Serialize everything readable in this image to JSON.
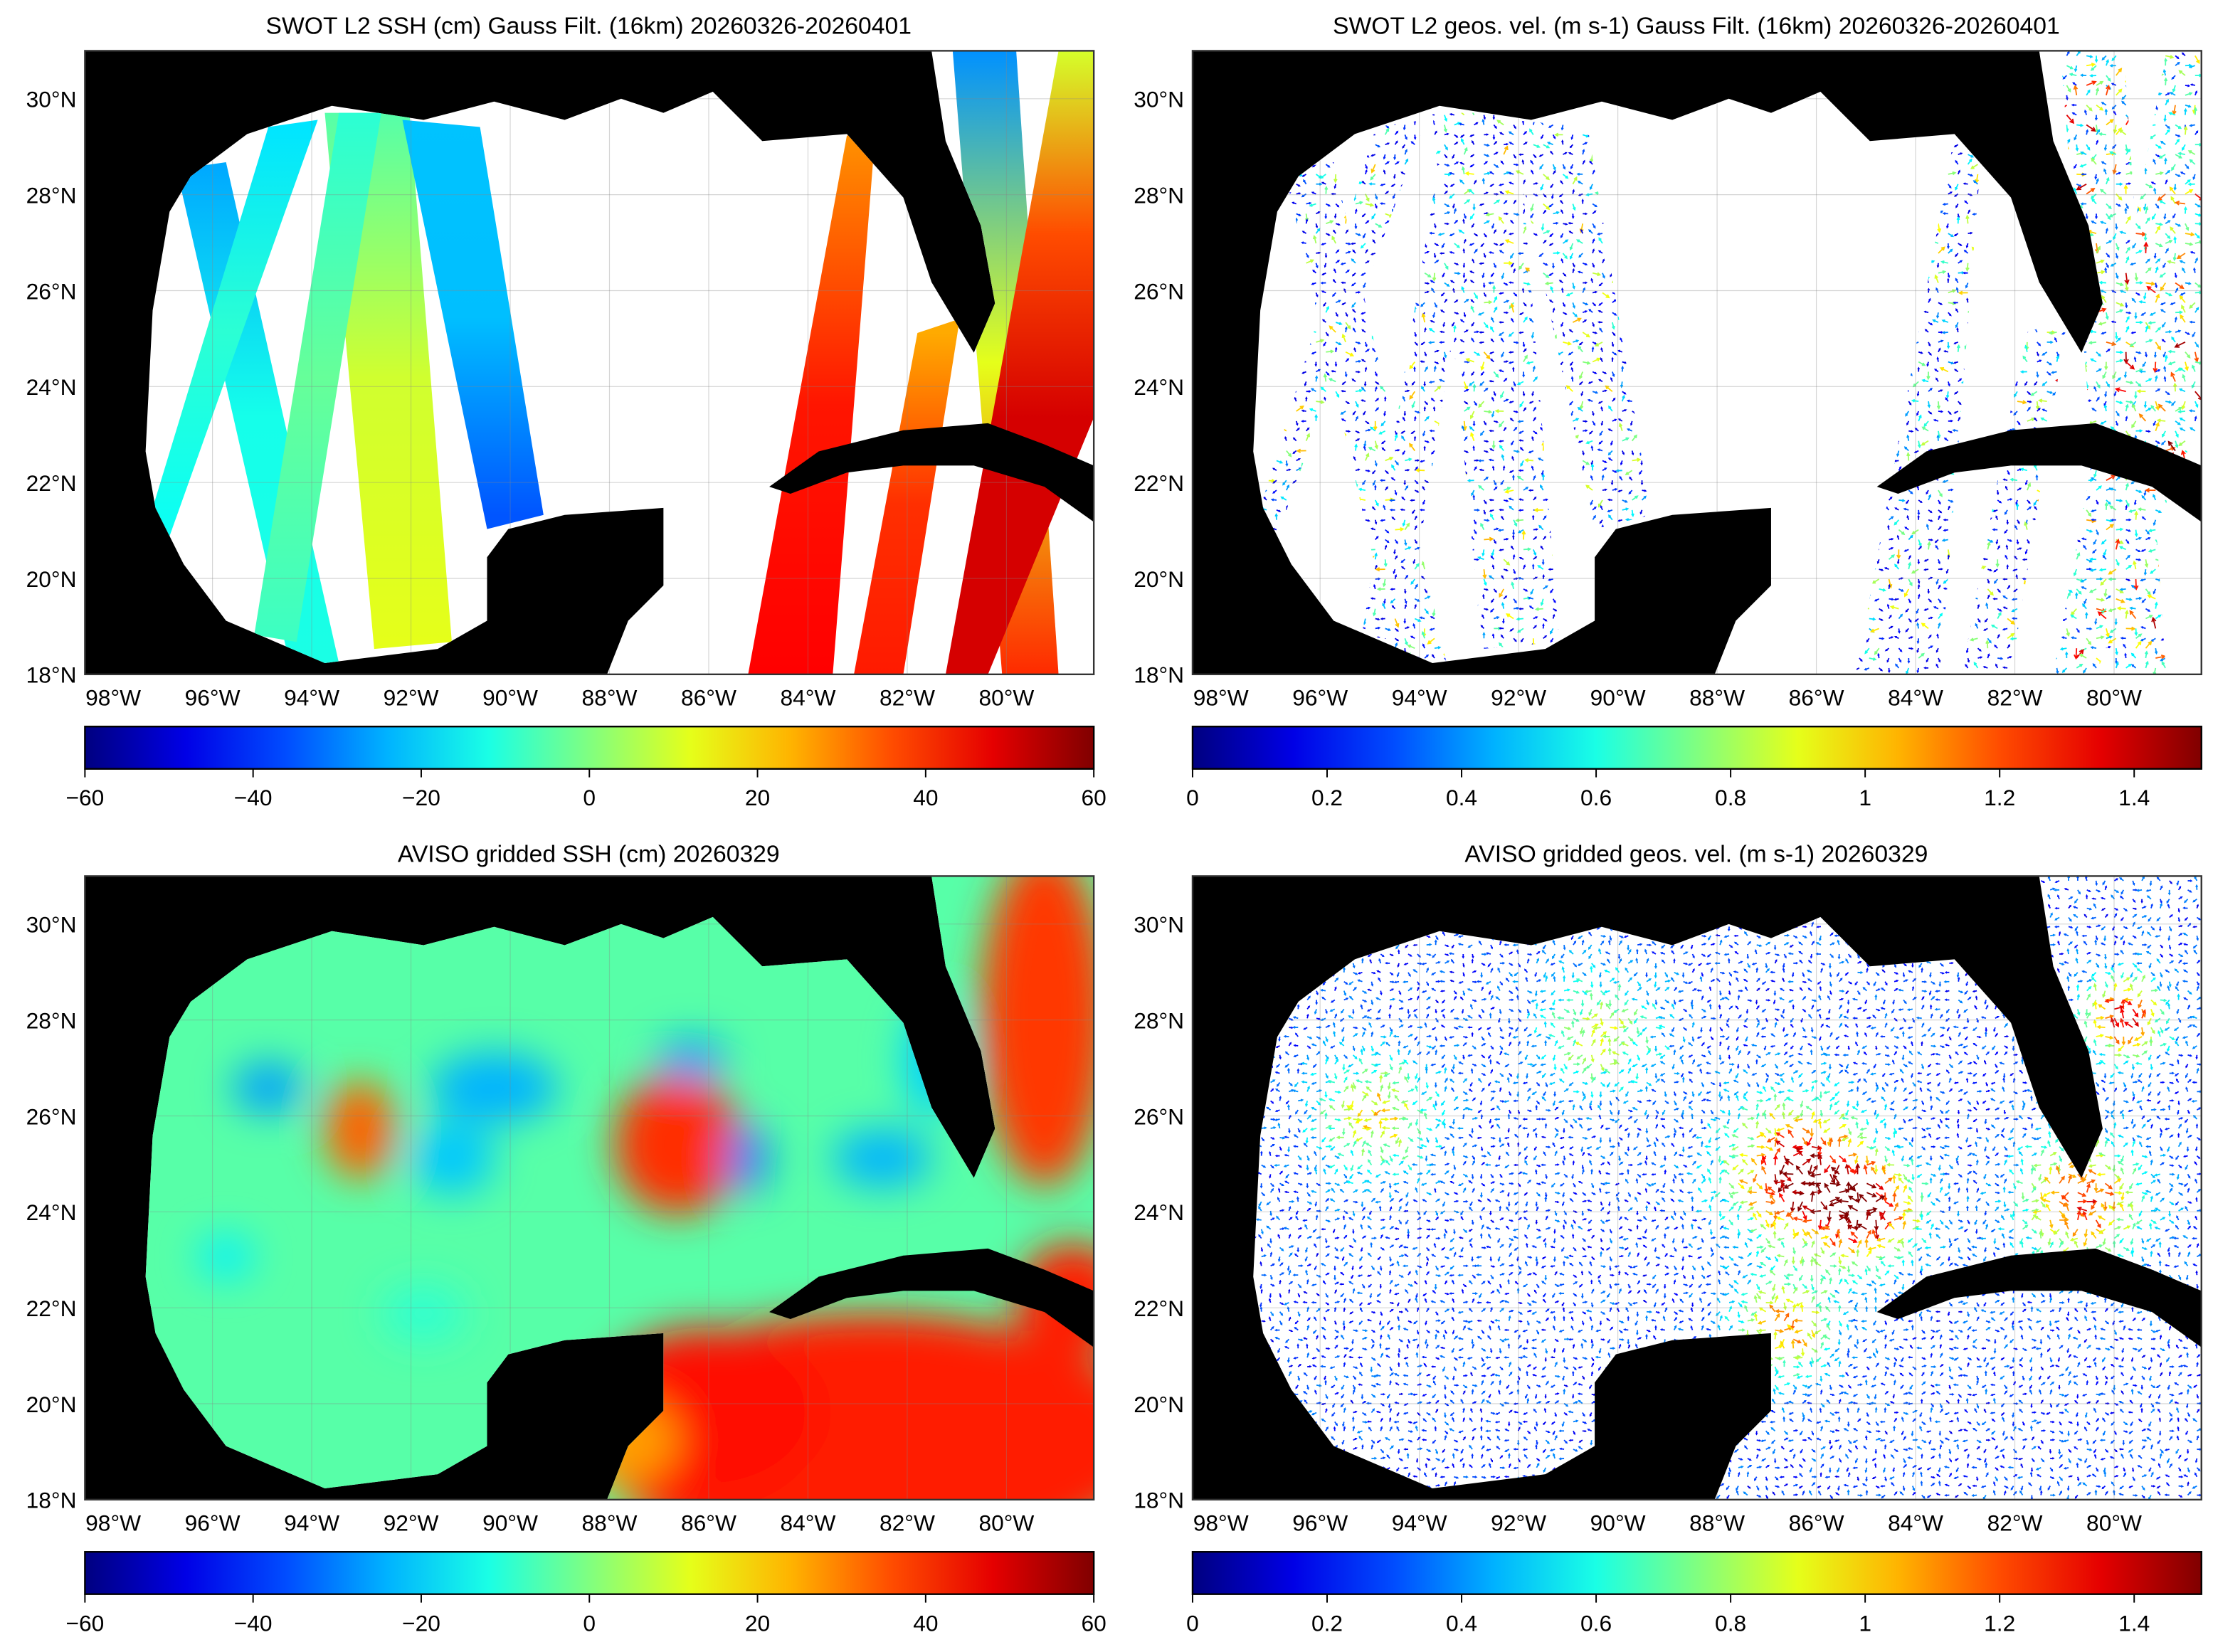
{
  "panels": [
    {
      "id": "swot-ssh",
      "title": "SWOT L2 SSH (cm) Gauss Filt. (16km) 20260326-20260401",
      "kind": "ssh-swath",
      "colorbar": {
        "min": -60,
        "max": 60,
        "ticks": [
          -60,
          -40,
          -20,
          0,
          20,
          40,
          60
        ],
        "tick_labels": [
          "−60",
          "−40",
          "−20",
          "0",
          "20",
          "40",
          "60"
        ],
        "colormap": "jet"
      }
    },
    {
      "id": "swot-vel",
      "title": "SWOT L2 geos. vel. (m s-1) Gauss Filt. (16km) 20260326-20260401",
      "kind": "vel-swath",
      "colorbar": {
        "min": 0,
        "max": 1.5,
        "ticks": [
          0,
          0.2,
          0.4,
          0.6,
          0.8,
          1,
          1.2,
          1.4
        ],
        "tick_labels": [
          "0",
          "0.2",
          "0.4",
          "0.6",
          "0.8",
          "1",
          "1.2",
          "1.4"
        ],
        "colormap": "jet"
      }
    },
    {
      "id": "aviso-ssh",
      "title": "AVISO gridded SSH (cm) 20260329",
      "kind": "ssh-grid",
      "colorbar": {
        "min": -60,
        "max": 60,
        "ticks": [
          -60,
          -40,
          -20,
          0,
          20,
          40,
          60
        ],
        "tick_labels": [
          "−60",
          "−40",
          "−20",
          "0",
          "20",
          "40",
          "60"
        ],
        "colormap": "jet"
      }
    },
    {
      "id": "aviso-vel",
      "title": "AVISO gridded geos. vel. (m s-1)  20260329",
      "kind": "vel-grid",
      "colorbar": {
        "min": 0,
        "max": 1.5,
        "ticks": [
          0,
          0.2,
          0.4,
          0.6,
          0.8,
          1,
          1.2,
          1.4
        ],
        "tick_labels": [
          "0",
          "0.2",
          "0.4",
          "0.6",
          "0.8",
          "1",
          "1.2",
          "1.4"
        ],
        "colormap": "jet"
      }
    }
  ],
  "map": {
    "lon_range": [
      -98.57,
      -78.24
    ],
    "lat_range": [
      18,
      31
    ],
    "lat_ticks": [
      18,
      20,
      22,
      24,
      26,
      28,
      30
    ],
    "lat_labels": [
      "18°N",
      "20°N",
      "22°N",
      "24°N",
      "26°N",
      "28°N",
      "30°N"
    ],
    "lon_ticks": [
      -98,
      -96,
      -94,
      -92,
      -90,
      -88,
      -86,
      -84,
      -82,
      -80
    ],
    "lon_labels": [
      "98°W",
      "96°W",
      "94°W",
      "92°W",
      "90°W",
      "88°W",
      "86°W",
      "84°W",
      "82°W",
      "80°W"
    ],
    "land_color": "#000000",
    "no_data_color": "#ffffff",
    "grid": true
  }
}
